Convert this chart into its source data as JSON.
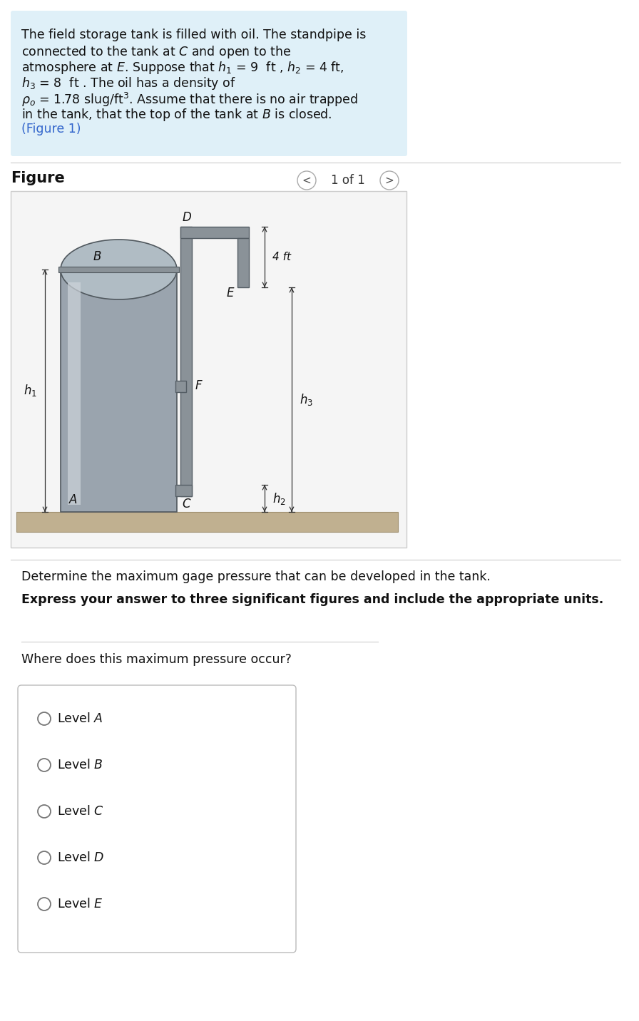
{
  "bg_color": "#ffffff",
  "text_box_bg": "#dff0f8",
  "separator_color": "#cccccc",
  "tank_color": "#9aa4ae",
  "tank_highlight": "#c0c8d0",
  "tank_shadow": "#6e7880",
  "pipe_color": "#8a9298",
  "pipe_edge": "#555e65",
  "ground_color": "#c0b090",
  "ground_edge": "#a09070",
  "fig_bg": "#f5f5f5",
  "fig_border": "#cccccc",
  "question1": "Determine the maximum gage pressure that can be developed in the tank.",
  "question2": "Express your answer to three significant figures and include the appropriate units.",
  "question3": "Where does this maximum pressure occur?",
  "options": [
    "Level $A$",
    "Level $B$",
    "Level $C$",
    "Level $D$",
    "Level $E$"
  ]
}
